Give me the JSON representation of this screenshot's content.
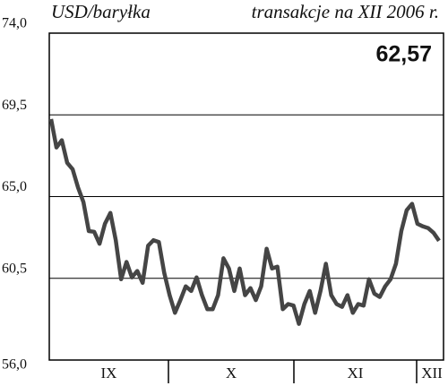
{
  "chart_data": {
    "type": "line",
    "title": "transakcje na XII 2006 r.",
    "y_label": "USD/baryłka",
    "annotation": "62,57",
    "months": [
      "IX",
      "X",
      "XI",
      "XII"
    ],
    "series": [
      {
        "color": "#454545",
        "values": [
          69.27,
          67.7,
          68.1,
          66.86,
          66.5,
          65.5,
          64.7,
          63.1,
          63.06,
          62.4,
          63.5,
          64.1,
          62.6,
          60.45,
          61.4,
          60.55,
          60.9,
          60.25,
          62.3,
          62.6,
          62.5,
          60.8,
          59.57,
          58.6,
          59.3,
          60.06,
          59.8,
          60.55,
          59.57,
          58.8,
          58.8,
          59.57,
          61.6,
          61.04,
          59.8,
          61.04,
          59.57,
          59.96,
          59.3,
          60.06,
          62.13,
          61.04,
          61.14,
          58.8,
          59.08,
          59.0,
          57.99,
          59.08,
          59.8,
          58.6,
          59.8,
          61.3,
          59.57,
          59.08,
          58.93,
          59.57,
          58.6,
          59.08,
          59.0,
          60.45,
          59.66,
          59.47,
          60.06,
          60.45,
          61.3,
          63.1,
          64.25,
          64.6,
          63.5,
          63.36,
          63.26,
          63.0,
          62.57
        ]
      }
    ],
    "ylim": [
      56,
      74
    ],
    "yticks": [
      {
        "value": 56,
        "label": "56,0"
      },
      {
        "value": 60.5,
        "label": "60,5"
      },
      {
        "value": 65,
        "label": "65,0"
      },
      {
        "value": 69.5,
        "label": "69,5"
      },
      {
        "value": 74,
        "label": "74,0"
      }
    ],
    "grid": true
  }
}
